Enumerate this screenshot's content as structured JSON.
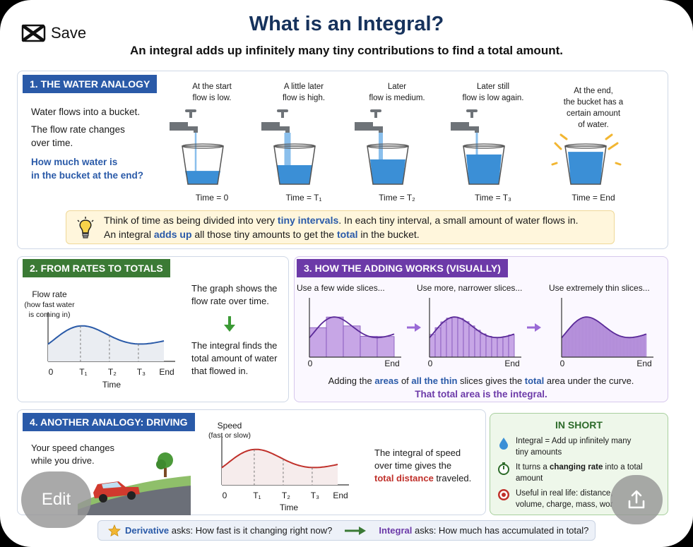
{
  "header": {
    "title": "What is an Integral?",
    "subtitle": "An integral adds up infinitely many tiny contributions to find a total amount.",
    "save_label": "Save"
  },
  "water": {
    "header": "1. THE WATER ANALOGY",
    "line1": "Water flows into a bucket.",
    "line2a": "The flow rate changes",
    "line2b": "over time.",
    "q1": "How much water is",
    "q2": "in the bucket at the end?",
    "stages": [
      {
        "cap1": "At the start",
        "cap2": "flow is low.",
        "cap3": "",
        "cap4": "",
        "time": "Time = 0",
        "level": 0.35
      },
      {
        "cap1": "A little later",
        "cap2": "flow is high.",
        "cap3": "",
        "cap4": "",
        "time": "Time = T₁",
        "level": 0.5
      },
      {
        "cap1": "Later",
        "cap2": "flow is medium.",
        "cap3": "",
        "cap4": "",
        "time": "Time = T₂",
        "level": 0.65
      },
      {
        "cap1": "Later still",
        "cap2": "flow is low again.",
        "cap3": "",
        "cap4": "",
        "time": "Time = T₃",
        "level": 0.78
      },
      {
        "cap1": "At the end,",
        "cap2": "the bucket has a",
        "cap3": "certain amount",
        "cap4": "of water.",
        "time": "Time = End",
        "level": 0.85
      }
    ],
    "tip": {
      "l1a": "Think of time as being divided into very ",
      "l1b": "tiny intervals",
      "l1c": ". In each tiny interval, a small amount of water flows in.",
      "l2a": "An integral ",
      "l2b": "adds up",
      "l2c": " all those tiny amounts to get the ",
      "l2d": "total",
      "l2e": "  in the bucket."
    }
  },
  "rates": {
    "header": "2. FROM RATES TO TOTALS",
    "ylabel1": "Flow rate",
    "ylabel2": "(how fast water",
    "ylabel3": "is coming in)",
    "ticks": [
      "0",
      "T₁",
      "T₂",
      "T₃",
      "End"
    ],
    "xlabel": "Time",
    "t1a": "The graph shows the",
    "t1b": "flow rate over time.",
    "t2a": "The integral finds the",
    "t2b": "total amount of water",
    "t2c": "that flowed in."
  },
  "adding": {
    "header": "3. HOW THE ADDING WORKS (VISUALLY)",
    "labels": [
      "Use a few wide slices...",
      "Use more, narrower slices...",
      "Use extremely thin slices..."
    ],
    "zero": "0",
    "end": "End",
    "slice_counts": [
      5,
      15,
      60
    ],
    "sum_a": "Adding the ",
    "sum_b": "areas",
    "sum_c": " of ",
    "sum_d": "all the thin",
    "sum_e": " slices gives the ",
    "sum_f": "total",
    "sum_g": " area under the curve.",
    "conclusion": "That total area is the integral."
  },
  "driving": {
    "header": "4. ANOTHER ANALOGY: DRIVING",
    "line1": "Your speed changes",
    "line2": "while you drive.",
    "ylabel1": "Speed",
    "ylabel2": "(fast or slow)",
    "ticks": [
      "0",
      "T₁",
      "T₂",
      "T₃",
      "End"
    ],
    "xlabel": "Time",
    "t1": "The integral of speed",
    "t2": "over time gives the",
    "t3a": "total distance",
    "t3b": " traveled."
  },
  "short": {
    "header": "IN SHORT",
    "i1a": "Integral = Add up infinitely many",
    "i1b": "tiny amounts",
    "i2a": "It turns a ",
    "i2b": "changing rate",
    "i2c": " into a total",
    "i2d": "amount",
    "i3a": "Useful in real life: distance,",
    "i3b": "volume, charge, mass, wor"
  },
  "bottom": {
    "deriv": "Derivative",
    "deriv_q": " asks: How fast is it changing right now?",
    "integ": "Integral",
    "integ_q": " asks: How much has accumulated in total?"
  },
  "controls": {
    "edit": "Edit"
  },
  "colors": {
    "blue": "#2a5aa8",
    "green": "#3b7a35",
    "purple": "#6c3aa8",
    "red": "#c0302a"
  }
}
